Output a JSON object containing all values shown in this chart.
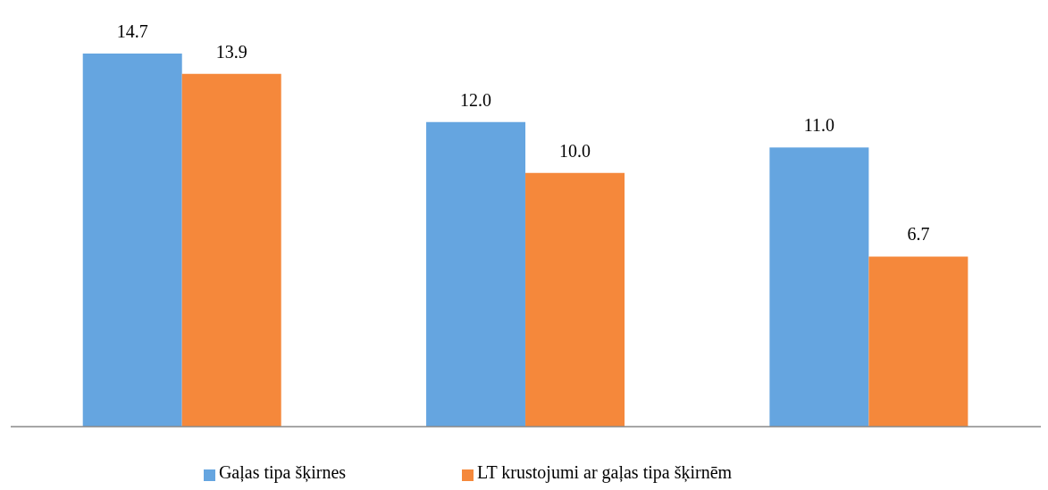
{
  "chart_data": {
    "type": "bar",
    "categories": [
      null,
      null,
      null
    ],
    "series": [
      {
        "name": "Gaļas tipa šķirnes",
        "color": "#65a5e0",
        "values": [
          14.7,
          12.0,
          11.0
        ],
        "value_labels": [
          "14.7",
          "12.0",
          "11.0"
        ]
      },
      {
        "name": "LT krustojumi ar gaļas tipa šķirnēm",
        "color": "#f5883b",
        "values": [
          13.9,
          10.0,
          6.7
        ],
        "value_labels": [
          "13.9",
          "10.0",
          "6.7"
        ]
      }
    ],
    "grid": false,
    "legend": "bottom"
  }
}
